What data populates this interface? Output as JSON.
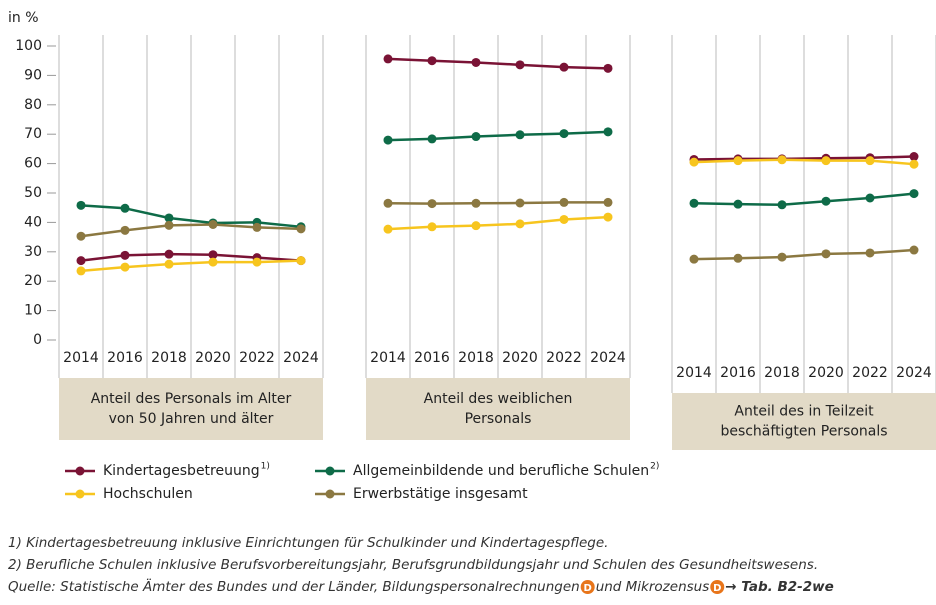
{
  "chart_data": {
    "type": "line",
    "y_label": "in %",
    "ylim": [
      0,
      100
    ],
    "yticks": [
      0,
      10,
      20,
      30,
      40,
      50,
      60,
      70,
      80,
      90,
      100
    ],
    "categories": [
      "2014",
      "2016",
      "2018",
      "2020",
      "2022",
      "2024"
    ],
    "legend": [
      {
        "name": "Kindertagesbetreuung",
        "note_ref": "1)",
        "color": "#7a1335"
      },
      {
        "name": "Allgemeinbildende und berufliche Schulen",
        "note_ref": "2)",
        "color": "#0e6b48"
      },
      {
        "name": "Hochschulen",
        "color": "#f7c51e"
      },
      {
        "name": "Erwerbstätige insgesamt",
        "color": "#8b7841"
      }
    ],
    "panels": [
      {
        "label": [
          "Anteil des Personals im Alter",
          "von 50 Jahren und älter"
        ],
        "series": [
          {
            "values": [
              27,
              28.8,
              29.2,
              29,
              28,
              27
            ]
          },
          {
            "values": [
              45.8,
              44.8,
              41.5,
              39.8,
              40,
              38.5
            ]
          },
          {
            "values": [
              23.5,
              24.8,
              25.8,
              26.5,
              26.5,
              27
            ]
          },
          {
            "values": [
              35.3,
              37.3,
              39,
              39.3,
              38.3,
              37.8
            ]
          }
        ]
      },
      {
        "label": [
          "Anteil des weiblichen",
          "Personals"
        ],
        "series": [
          {
            "values": [
              95.6,
              95,
              94.4,
              93.6,
              92.8,
              92.4
            ]
          },
          {
            "values": [
              68,
              68.4,
              69.2,
              69.8,
              70.2,
              70.8
            ]
          },
          {
            "values": [
              37.7,
              38.5,
              38.9,
              39.5,
              41,
              41.8
            ]
          },
          {
            "values": [
              46.5,
              46.4,
              46.5,
              46.6,
              46.8,
              46.8
            ]
          }
        ]
      },
      {
        "label": [
          "Anteil des in Teilzeit",
          "beschäftigten Personals"
        ],
        "series": [
          {
            "values": [
              61.4,
              61.6,
              61.6,
              61.8,
              62,
              62.4
            ]
          },
          {
            "values": [
              46.5,
              46.2,
              46,
              47.2,
              48.3,
              49.8
            ]
          },
          {
            "values": [
              60.5,
              61,
              61.3,
              61,
              61,
              59.8
            ]
          },
          {
            "values": [
              27.5,
              27.8,
              28.2,
              29.3,
              29.6,
              30.6
            ]
          }
        ]
      }
    ],
    "notes": [
      "1) Kindertagesbetreuung inklusive Einrichtungen für Schulkinder und Kindertagespflege.",
      "2) Berufliche Schulen inklusive Berufsvorbereitungsjahr, Berufsgrundbildungsjahr und Schulen des Gesundheitswesens."
    ],
    "source": [
      "Quelle: Statistische Ämter des Bundes und der Länder, Bildungspersonalrechnungen",
      "D",
      " und Mikrozensus",
      "D",
      " → Tab. B2-2we"
    ]
  }
}
